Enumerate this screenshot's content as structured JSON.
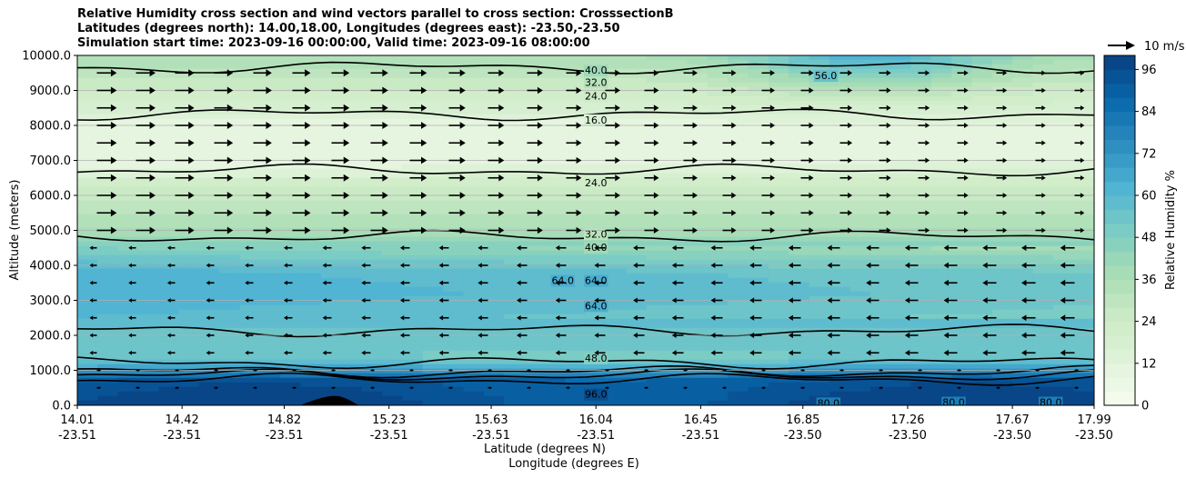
{
  "chart_data": {
    "type": "contour",
    "title_lines": [
      "Relative Humidity cross section and wind vectors parallel to cross section: CrosssectionB",
      "Latitudes (degrees north): 14.00,18.00, Longitudes (degrees east): -23.50,-23.50",
      "Simulation start time: 2023-09-16 00:00:00, Valid time: 2023-09-16 08:00:00"
    ],
    "ylabel": "Altitude (meters)",
    "xlabel_lines": [
      "Latitude (degrees N)",
      "Longitude (degrees E)"
    ],
    "ylim": [
      0,
      10000
    ],
    "y_ticks": [
      "0.0",
      "1000.0",
      "2000.0",
      "3000.0",
      "4000.0",
      "5000.0",
      "6000.0",
      "7000.0",
      "8000.0",
      "9000.0",
      "10000.0"
    ],
    "x_ticks": [
      {
        "lat": "14.01",
        "lon": "-23.51"
      },
      {
        "lat": "14.42",
        "lon": "-23.51"
      },
      {
        "lat": "14.82",
        "lon": "-23.51"
      },
      {
        "lat": "15.23",
        "lon": "-23.51"
      },
      {
        "lat": "15.63",
        "lon": "-23.51"
      },
      {
        "lat": "16.04",
        "lon": "-23.51"
      },
      {
        "lat": "16.45",
        "lon": "-23.51"
      },
      {
        "lat": "16.85",
        "lon": "-23.50"
      },
      {
        "lat": "17.26",
        "lon": "-23.50"
      },
      {
        "lat": "17.67",
        "lon": "-23.50"
      },
      {
        "lat": "17.99",
        "lon": "-23.50"
      }
    ],
    "x_range": [
      14.01,
      17.99
    ],
    "colorbar": {
      "label": "Relative Humidity %",
      "range": [
        0,
        100
      ],
      "step": 4,
      "ticks": [
        "0",
        "12",
        "24",
        "36",
        "48",
        "60",
        "72",
        "84",
        "96"
      ],
      "colormap": "GnBu"
    },
    "quiver_key": {
      "label": "10 m/s",
      "value": 10
    },
    "contour_levels": [
      8,
      16,
      24,
      32,
      40,
      48,
      56,
      64,
      72,
      80,
      88,
      96
    ],
    "contour_labels": [
      {
        "text": "64.0",
        "lat": 15.91,
        "alt": 3570
      },
      {
        "text": "64.0",
        "lat": 16.04,
        "alt": 3570
      },
      {
        "text": "64.0",
        "lat": 16.04,
        "alt": 2850
      },
      {
        "text": "48.0",
        "lat": 16.04,
        "alt": 1350
      },
      {
        "text": "96.0",
        "lat": 16.04,
        "alt": 320
      },
      {
        "text": "40.0",
        "lat": 16.04,
        "alt": 4520
      },
      {
        "text": "32.0",
        "lat": 16.04,
        "alt": 4900
      },
      {
        "text": "24.0",
        "lat": 16.04,
        "alt": 6360
      },
      {
        "text": "16.0",
        "lat": 16.04,
        "alt": 8160
      },
      {
        "text": "24.0",
        "lat": 16.04,
        "alt": 8840
      },
      {
        "text": "32.0",
        "lat": 16.04,
        "alt": 9240
      },
      {
        "text": "40.0",
        "lat": 16.04,
        "alt": 9580
      },
      {
        "text": "56.0",
        "lat": 16.94,
        "alt": 9430
      },
      {
        "text": "80.0",
        "lat": 16.95,
        "alt": 70
      },
      {
        "text": "80.0",
        "lat": 17.44,
        "alt": 90
      },
      {
        "text": "80.0",
        "lat": 17.82,
        "alt": 90
      }
    ],
    "profile": [
      {
        "alt": 0,
        "rh": 96
      },
      {
        "alt": 700,
        "rh": 92
      },
      {
        "alt": 1000,
        "rh": 70
      },
      {
        "alt": 1300,
        "rh": 52
      },
      {
        "alt": 1800,
        "rh": 52
      },
      {
        "alt": 2500,
        "rh": 60
      },
      {
        "alt": 3200,
        "rh": 64
      },
      {
        "alt": 3800,
        "rh": 62
      },
      {
        "alt": 4500,
        "rh": 48
      },
      {
        "alt": 5000,
        "rh": 36
      },
      {
        "alt": 5600,
        "rh": 30
      },
      {
        "alt": 6200,
        "rh": 24
      },
      {
        "alt": 7000,
        "rh": 12
      },
      {
        "alt": 8000,
        "rh": 12
      },
      {
        "alt": 9000,
        "rh": 24
      },
      {
        "alt": 10000,
        "rh": 36
      }
    ],
    "wind": {
      "direction_by_altitude": [
        {
          "from_alt": 0,
          "to_alt": 1300,
          "u": 0
        },
        {
          "from_alt": 1300,
          "to_alt": 5000,
          "u": -4
        },
        {
          "from_alt": 5000,
          "to_alt": 10000,
          "u": 6
        }
      ]
    }
  }
}
